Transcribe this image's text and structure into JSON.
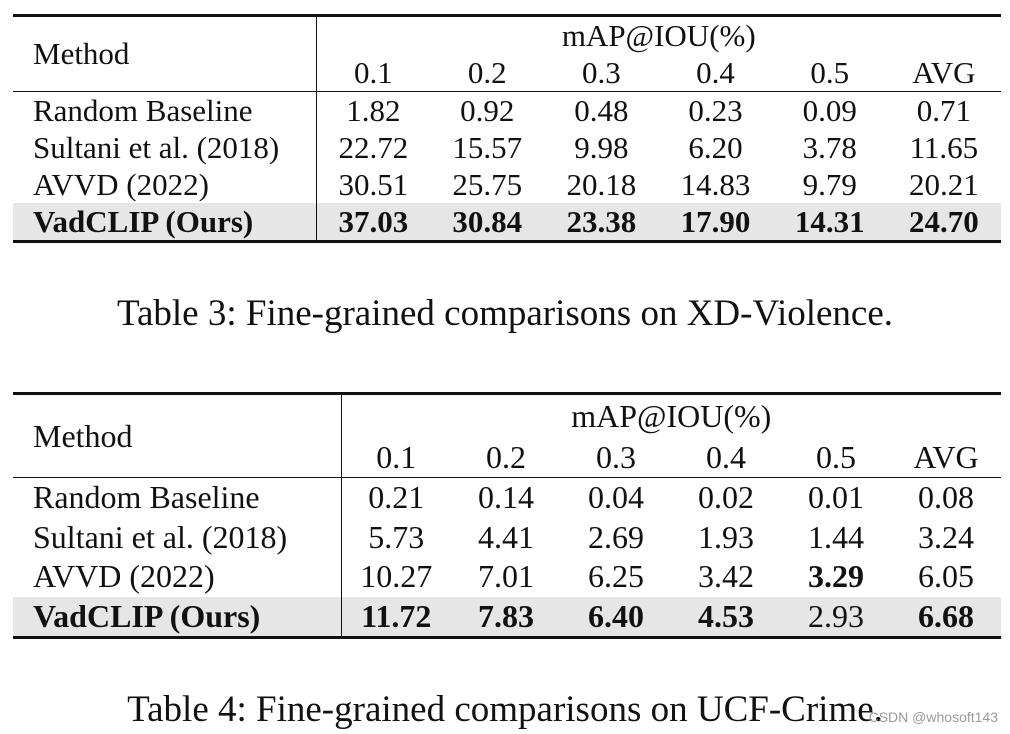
{
  "tables": [
    {
      "method_header": "Method",
      "metric_header": "mAP@IOU(%)",
      "columns": [
        "0.1",
        "0.2",
        "0.3",
        "0.4",
        "0.5",
        "AVG"
      ],
      "rows": [
        {
          "method": "Random Baseline",
          "values": [
            "1.82",
            "0.92",
            "0.48",
            "0.23",
            "0.09",
            "0.71"
          ]
        },
        {
          "method": "Sultani et al. (2018)",
          "values": [
            "22.72",
            "15.57",
            "9.98",
            "6.20",
            "3.78",
            "11.65"
          ]
        },
        {
          "method": "AVVD (2022)",
          "values": [
            "30.51",
            "25.75",
            "20.18",
            "14.83",
            "9.79",
            "20.21"
          ]
        },
        {
          "method": "VadCLIP (Ours)",
          "values": [
            "37.03",
            "30.84",
            "23.38",
            "17.90",
            "14.31",
            "24.70"
          ]
        }
      ],
      "caption": "Table 3: Fine-grained comparisons on XD-Violence."
    },
    {
      "method_header": "Method",
      "metric_header": "mAP@IOU(%)",
      "columns": [
        "0.1",
        "0.2",
        "0.3",
        "0.4",
        "0.5",
        "AVG"
      ],
      "rows": [
        {
          "method": "Random Baseline",
          "values": [
            "0.21",
            "0.14",
            "0.04",
            "0.02",
            "0.01",
            "0.08"
          ]
        },
        {
          "method": "Sultani et al. (2018)",
          "values": [
            "5.73",
            "4.41",
            "2.69",
            "1.93",
            "1.44",
            "3.24"
          ]
        },
        {
          "method": "AVVD (2022)",
          "values": [
            "10.27",
            "7.01",
            "6.25",
            "3.42",
            "3.29",
            "6.05"
          ]
        },
        {
          "method": "VadCLIP (Ours)",
          "values": [
            "11.72",
            "7.83",
            "6.40",
            "4.53",
            "2.93",
            "6.68"
          ]
        }
      ],
      "caption": "Table 4: Fine-grained comparisons on UCF-Crime."
    }
  ],
  "watermark": "CSDN @whosoft143"
}
